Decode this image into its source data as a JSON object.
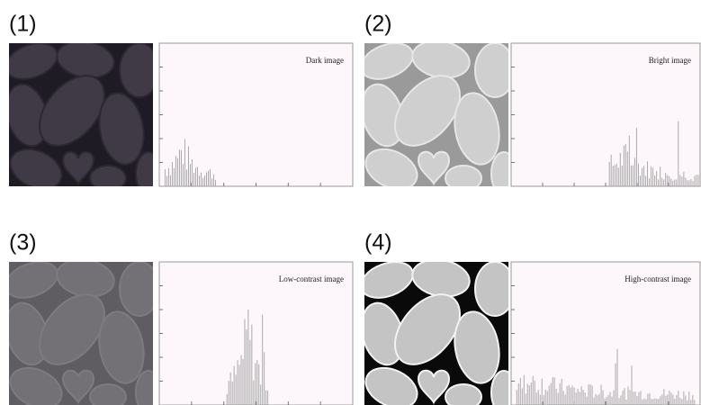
{
  "panels": [
    {
      "label": "(1)",
      "histogram_title": "Dark image"
    },
    {
      "label": "(2)",
      "histogram_title": "Bright image"
    },
    {
      "label": "(3)",
      "histogram_title": "Low-contrast image"
    },
    {
      "label": "(4)",
      "histogram_title": "High-contrast image"
    }
  ]
}
